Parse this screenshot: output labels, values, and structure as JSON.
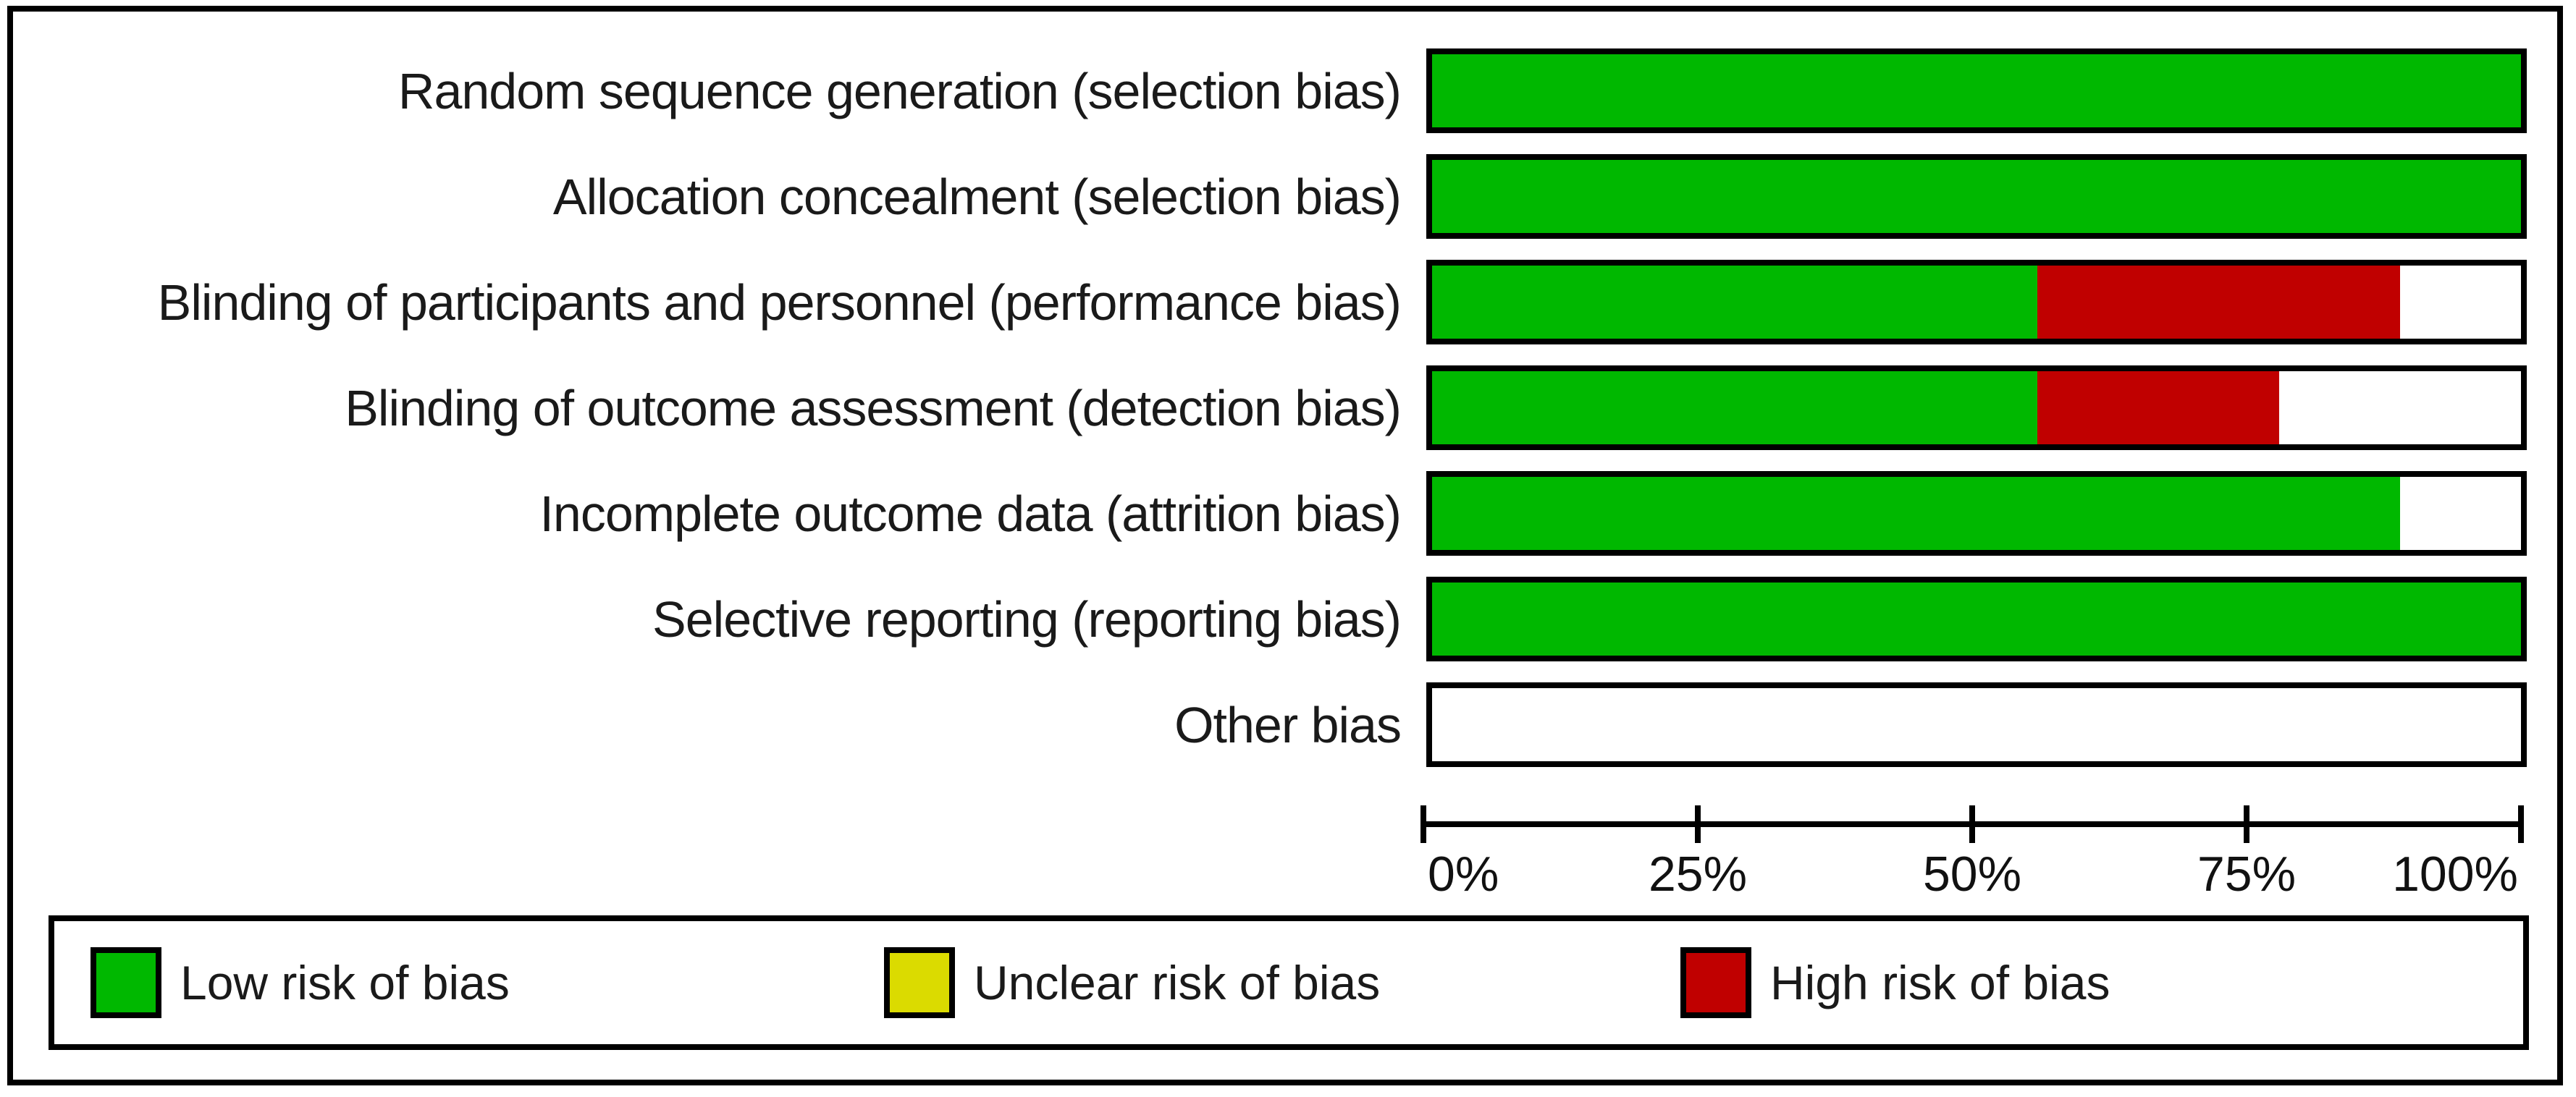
{
  "colors": {
    "background": "#ffffff",
    "frame": "#000000",
    "text": "#1a1a1a",
    "low_risk_green": "#00b800",
    "unclear_risk_yellow": "#dbdb00",
    "high_risk_red": "#c00000",
    "blank_white": "#ffffff"
  },
  "chart_data": {
    "type": "bar",
    "orientation": "horizontal-stacked",
    "title": "",
    "xlabel": "",
    "ylabel": "",
    "categories": [
      "Random sequence generation (selection bias)",
      "Allocation concealment (selection bias)",
      "Blinding of participants and personnel (performance bias)",
      "Blinding of outcome assessment (detection bias)",
      "Incomplete outcome data (attrition bias)",
      "Selective reporting (reporting bias)",
      "Other bias"
    ],
    "series": [
      {
        "key": "low",
        "name": "Low risk of bias",
        "color": "#00b800",
        "values": [
          100,
          100,
          55.6,
          55.6,
          88.9,
          100,
          0
        ]
      },
      {
        "key": "unclear",
        "name": "Unclear risk of bias",
        "color": "#dbdb00",
        "values": [
          0,
          0,
          0,
          0,
          0,
          0,
          0
        ]
      },
      {
        "key": "high",
        "name": "High risk of bias",
        "color": "#c00000",
        "values": [
          0,
          0,
          33.3,
          22.2,
          0,
          0,
          0
        ]
      },
      {
        "key": "blank",
        "name": "",
        "color": "#ffffff",
        "values": [
          0,
          0,
          11.1,
          22.2,
          11.1,
          0,
          100
        ]
      }
    ],
    "x_axis": {
      "range": [
        0,
        100
      ],
      "ticks": [
        "0%",
        "25%",
        "50%",
        "75%",
        "100%"
      ]
    },
    "grid": false,
    "legend_position": "bottom"
  },
  "legend": {
    "items": [
      {
        "key": "low-risk",
        "label": "Low risk of bias",
        "color": "#00b800"
      },
      {
        "key": "unclear-risk",
        "label": "Unclear risk of bias",
        "color": "#dbdb00"
      },
      {
        "key": "high-risk",
        "label": "High risk of bias",
        "color": "#c00000"
      }
    ]
  }
}
